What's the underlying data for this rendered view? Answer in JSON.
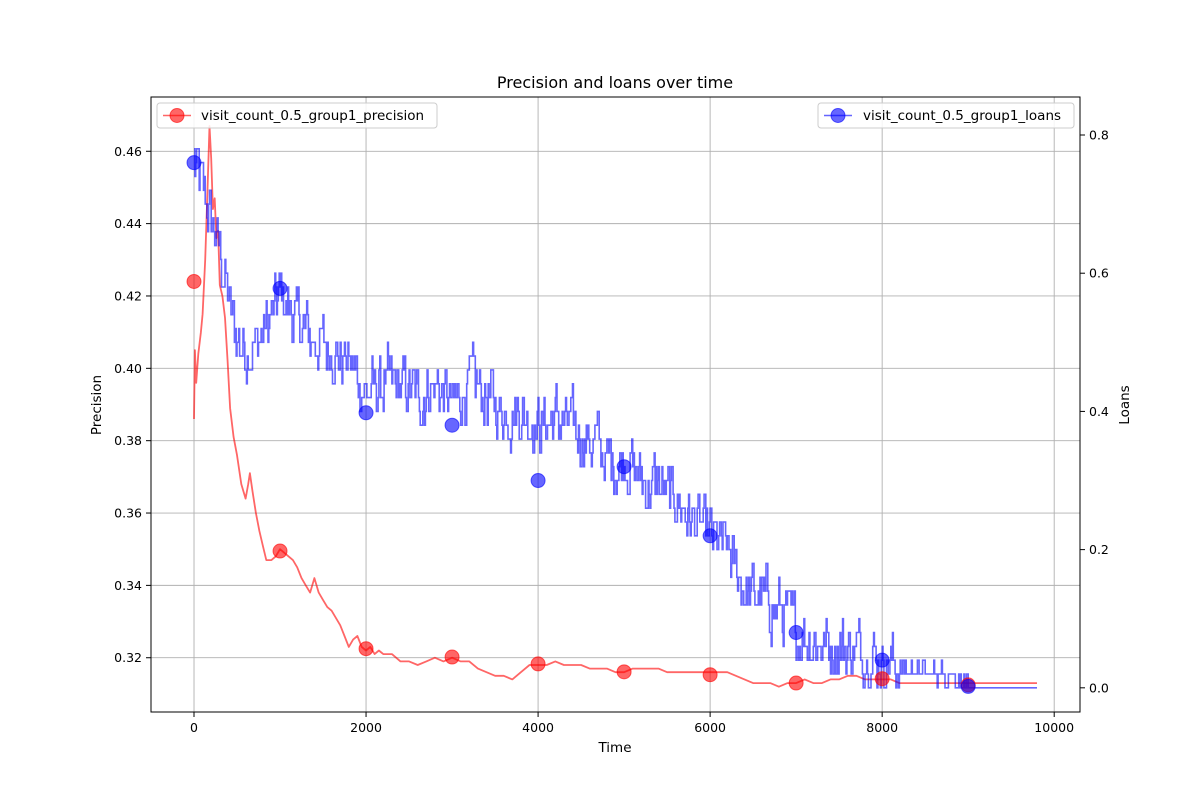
{
  "chart_data": {
    "type": "line",
    "title": "Precision and loans over time",
    "xlabel": "Time",
    "ylabel": "Precision",
    "y2label": "Loans",
    "xlim": [
      -500,
      10300
    ],
    "ylim": [
      0.305,
      0.475
    ],
    "y2lim": [
      -0.035,
      0.855
    ],
    "xticks": [
      "0",
      "2000",
      "4000",
      "6000",
      "8000",
      "10000"
    ],
    "yticks": [
      "0.32",
      "0.34",
      "0.36",
      "0.38",
      "0.40",
      "0.42",
      "0.44",
      "0.46"
    ],
    "y2ticks": [
      "0.0",
      "0.2",
      "0.4",
      "0.6",
      "0.8"
    ],
    "grid": true,
    "series": [
      {
        "name": "visit_count_0.5_group1_precision",
        "axis": "left",
        "color": "#ff0000",
        "line": [
          [
            0,
            0.386
          ],
          [
            10,
            0.405
          ],
          [
            25,
            0.396
          ],
          [
            50,
            0.404
          ],
          [
            80,
            0.41
          ],
          [
            100,
            0.415
          ],
          [
            130,
            0.43
          ],
          [
            160,
            0.452
          ],
          [
            180,
            0.467
          ],
          [
            200,
            0.458
          ],
          [
            220,
            0.444
          ],
          [
            240,
            0.447
          ],
          [
            260,
            0.436
          ],
          [
            280,
            0.438
          ],
          [
            300,
            0.423
          ],
          [
            330,
            0.42
          ],
          [
            360,
            0.414
          ],
          [
            390,
            0.402
          ],
          [
            420,
            0.389
          ],
          [
            460,
            0.381
          ],
          [
            500,
            0.376
          ],
          [
            550,
            0.368
          ],
          [
            600,
            0.364
          ],
          [
            630,
            0.368
          ],
          [
            650,
            0.371
          ],
          [
            680,
            0.366
          ],
          [
            720,
            0.36
          ],
          [
            760,
            0.355
          ],
          [
            800,
            0.351
          ],
          [
            840,
            0.347
          ],
          [
            900,
            0.347
          ],
          [
            950,
            0.348
          ],
          [
            1000,
            0.35
          ],
          [
            1050,
            0.349
          ],
          [
            1100,
            0.348
          ],
          [
            1150,
            0.347
          ],
          [
            1200,
            0.345
          ],
          [
            1250,
            0.342
          ],
          [
            1300,
            0.34
          ],
          [
            1350,
            0.338
          ],
          [
            1400,
            0.342
          ],
          [
            1450,
            0.338
          ],
          [
            1500,
            0.336
          ],
          [
            1550,
            0.334
          ],
          [
            1600,
            0.333
          ],
          [
            1650,
            0.331
          ],
          [
            1700,
            0.329
          ],
          [
            1750,
            0.326
          ],
          [
            1800,
            0.323
          ],
          [
            1850,
            0.325
          ],
          [
            1900,
            0.326
          ],
          [
            1950,
            0.323
          ],
          [
            2000,
            0.322
          ],
          [
            2050,
            0.323
          ],
          [
            2100,
            0.321
          ],
          [
            2150,
            0.322
          ],
          [
            2200,
            0.321
          ],
          [
            2300,
            0.321
          ],
          [
            2400,
            0.319
          ],
          [
            2500,
            0.319
          ],
          [
            2600,
            0.318
          ],
          [
            2700,
            0.319
          ],
          [
            2800,
            0.32
          ],
          [
            2900,
            0.319
          ],
          [
            3000,
            0.32
          ],
          [
            3100,
            0.319
          ],
          [
            3200,
            0.319
          ],
          [
            3300,
            0.317
          ],
          [
            3400,
            0.316
          ],
          [
            3500,
            0.315
          ],
          [
            3600,
            0.315
          ],
          [
            3700,
            0.314
          ],
          [
            3800,
            0.316
          ],
          [
            3900,
            0.318
          ],
          [
            4000,
            0.318
          ],
          [
            4100,
            0.318
          ],
          [
            4200,
            0.319
          ],
          [
            4300,
            0.318
          ],
          [
            4400,
            0.318
          ],
          [
            4500,
            0.318
          ],
          [
            4600,
            0.317
          ],
          [
            4700,
            0.317
          ],
          [
            4800,
            0.317
          ],
          [
            4900,
            0.316
          ],
          [
            5000,
            0.316
          ],
          [
            5100,
            0.317
          ],
          [
            5200,
            0.317
          ],
          [
            5300,
            0.317
          ],
          [
            5400,
            0.317
          ],
          [
            5500,
            0.316
          ],
          [
            5600,
            0.316
          ],
          [
            5700,
            0.316
          ],
          [
            5800,
            0.316
          ],
          [
            5900,
            0.316
          ],
          [
            6000,
            0.316
          ],
          [
            6200,
            0.316
          ],
          [
            6300,
            0.315
          ],
          [
            6400,
            0.314
          ],
          [
            6500,
            0.313
          ],
          [
            6600,
            0.313
          ],
          [
            6700,
            0.313
          ],
          [
            6800,
            0.312
          ],
          [
            6900,
            0.313
          ],
          [
            7000,
            0.313
          ],
          [
            7100,
            0.314
          ],
          [
            7200,
            0.313
          ],
          [
            7300,
            0.313
          ],
          [
            7400,
            0.314
          ],
          [
            7500,
            0.314
          ],
          [
            7600,
            0.315
          ],
          [
            7700,
            0.315
          ],
          [
            7800,
            0.314
          ],
          [
            7900,
            0.314
          ],
          [
            8000,
            0.314
          ],
          [
            8100,
            0.314
          ],
          [
            8200,
            0.313
          ],
          [
            8300,
            0.313
          ],
          [
            8400,
            0.313
          ],
          [
            8500,
            0.313
          ],
          [
            8600,
            0.313
          ],
          [
            8700,
            0.313
          ],
          [
            8800,
            0.313
          ],
          [
            8900,
            0.313
          ],
          [
            9000,
            0.313
          ],
          [
            9200,
            0.313
          ],
          [
            9400,
            0.313
          ],
          [
            9600,
            0.313
          ],
          [
            9800,
            0.313
          ]
        ],
        "markers": [
          [
            0,
            0.424
          ],
          [
            1000,
            0.3495
          ],
          [
            2000,
            0.3225
          ],
          [
            3000,
            0.3202
          ],
          [
            4000,
            0.3183
          ],
          [
            5000,
            0.3161
          ],
          [
            6000,
            0.3153
          ],
          [
            7000,
            0.313
          ],
          [
            8000,
            0.3142
          ],
          [
            9000,
            0.3125
          ]
        ]
      },
      {
        "name": "visit_count_0.5_group1_loans",
        "axis": "right",
        "color": "#0000ff",
        "base": [
          [
            0,
            0.76
          ],
          [
            100,
            0.71
          ],
          [
            200,
            0.67
          ],
          [
            300,
            0.62
          ],
          [
            400,
            0.55
          ],
          [
            500,
            0.5
          ],
          [
            700,
            0.49
          ],
          [
            900,
            0.54
          ],
          [
            1000,
            0.57
          ],
          [
            1200,
            0.53
          ],
          [
            1400,
            0.5
          ],
          [
            1600,
            0.49
          ],
          [
            1800,
            0.47
          ],
          [
            2000,
            0.42
          ],
          [
            2200,
            0.44
          ],
          [
            2400,
            0.43
          ],
          [
            2600,
            0.42
          ],
          [
            2800,
            0.44
          ],
          [
            3000,
            0.41
          ],
          [
            3200,
            0.44
          ],
          [
            3400,
            0.42
          ],
          [
            3600,
            0.4
          ],
          [
            3800,
            0.4
          ],
          [
            4000,
            0.38
          ],
          [
            4200,
            0.39
          ],
          [
            4400,
            0.37
          ],
          [
            4600,
            0.36
          ],
          [
            4800,
            0.33
          ],
          [
            5000,
            0.33
          ],
          [
            5200,
            0.3
          ],
          [
            5400,
            0.29
          ],
          [
            5600,
            0.27
          ],
          [
            5800,
            0.24
          ],
          [
            6000,
            0.22
          ],
          [
            6200,
            0.2
          ],
          [
            6400,
            0.14
          ],
          [
            6600,
            0.13
          ],
          [
            6800,
            0.11
          ],
          [
            7000,
            0.08
          ],
          [
            7200,
            0.07
          ],
          [
            7400,
            0.06
          ],
          [
            7600,
            0.06
          ],
          [
            7800,
            0.05
          ],
          [
            8000,
            0.04
          ],
          [
            8200,
            0.03
          ],
          [
            8400,
            0.025
          ],
          [
            8600,
            0.02
          ],
          [
            8800,
            0.02
          ],
          [
            9000,
            0.002
          ],
          [
            9800,
            0.0
          ]
        ],
        "markers": [
          [
            0,
            0.76
          ],
          [
            1000,
            0.578
          ],
          [
            2000,
            0.398
          ],
          [
            3000,
            0.38
          ],
          [
            4000,
            0.3
          ],
          [
            5000,
            0.32
          ],
          [
            6000,
            0.22
          ],
          [
            7000,
            0.08
          ],
          [
            8000,
            0.04
          ],
          [
            9000,
            0.002
          ]
        ]
      }
    ]
  },
  "legend": {
    "left_label": "visit_count_0.5_group1_precision",
    "right_label": "visit_count_0.5_group1_loans",
    "left_position": "top-left",
    "right_position": "top-right"
  }
}
